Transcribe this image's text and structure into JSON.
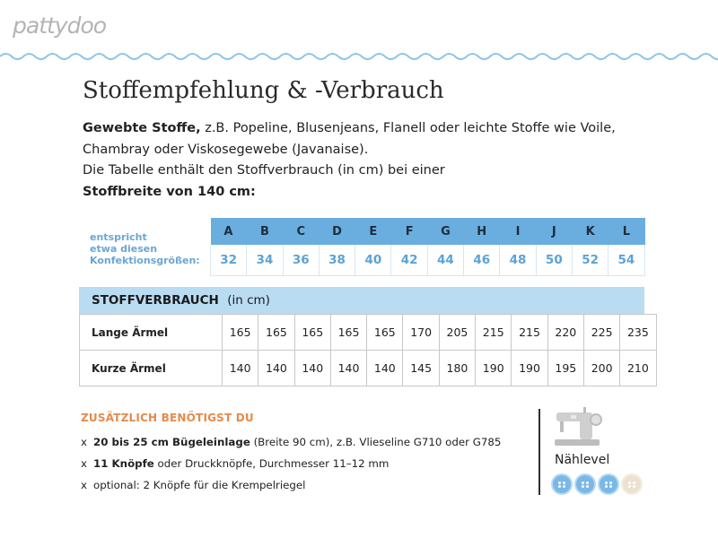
{
  "brand": {
    "logo_text": "pattydoo"
  },
  "heading": {
    "title": "Stoffempfehlung & -Verbrauch"
  },
  "intro": {
    "bold1": "Gewebte Stoffe,",
    "text1": " z.B. Popeline, Blusenjeans, Flanell oder leichte Stoffe wie Voile, Chambray oder Viskosegewebe (Javanaise).",
    "text2": "Die Tabelle enthält den Stoffverbrauch (in cm) bei einer",
    "bold2": "Stoffbreite von 140 cm:"
  },
  "sizes": {
    "label_line1": "entspricht",
    "label_line2": "etwa diesen",
    "label_line3": "Konfektionsgrößen:",
    "letters": [
      "A",
      "B",
      "C",
      "D",
      "E",
      "F",
      "G",
      "H",
      "I",
      "J",
      "K",
      "L"
    ],
    "numbers": [
      "32",
      "34",
      "36",
      "38",
      "40",
      "42",
      "44",
      "46",
      "48",
      "50",
      "52",
      "54"
    ]
  },
  "consumption": {
    "header_bold": "STOFFVERBRAUCH",
    "header_unit": "(in cm)",
    "rows": [
      {
        "label": "Lange Ärmel",
        "values": [
          "165",
          "165",
          "165",
          "165",
          "165",
          "170",
          "205",
          "215",
          "215",
          "220",
          "225",
          "235"
        ]
      },
      {
        "label": "Kurze Ärmel",
        "values": [
          "140",
          "140",
          "140",
          "140",
          "140",
          "145",
          "180",
          "190",
          "190",
          "195",
          "200",
          "210"
        ]
      }
    ]
  },
  "extras": {
    "title": "ZUSÄTZLICH BENÖTIGST DU",
    "items": [
      {
        "marker": "x",
        "bold": "20 bis 25 cm Bügeleinlage",
        "text": " (Breite 90 cm), z.B. Vlieseline G710 oder G785"
      },
      {
        "marker": "x",
        "bold": "11 Knöpfe",
        "text": " oder Druckknöpfe, Durchmesser 11–12 mm"
      },
      {
        "marker": "x",
        "bold": "",
        "text": "optional: 2 Knöpfe für die Krempelriegel"
      }
    ]
  },
  "sewing_level": {
    "label": "Nählevel",
    "level": 3,
    "max": 4,
    "icon": "sewing-machine-icon"
  },
  "colors": {
    "accent_blue": "#6aaee0",
    "light_blue": "#b9dcf2",
    "orange": "#e58a4a",
    "wave": "#8fc4ea"
  }
}
